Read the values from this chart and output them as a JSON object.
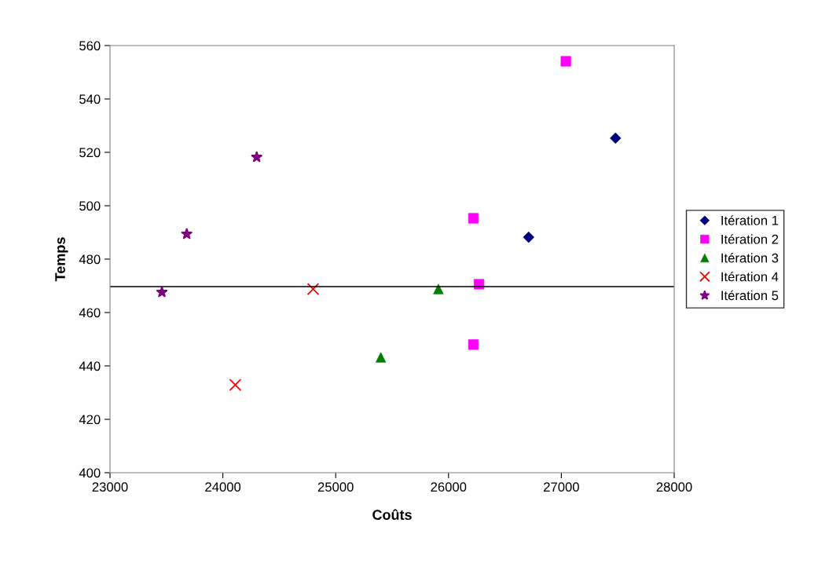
{
  "chart_data": {
    "type": "scatter",
    "xlabel": "Coûts",
    "ylabel": "Temps",
    "xlim": [
      23000,
      28000
    ],
    "xticks": [
      23000,
      24000,
      25000,
      26000,
      27000,
      28000
    ],
    "ylim": [
      400,
      560
    ],
    "yticks": [
      400,
      420,
      440,
      460,
      480,
      500,
      520,
      540,
      560
    ],
    "grid": false,
    "legend": "right",
    "ref_lines": [
      {
        "axis": "y",
        "value": 469.7,
        "color": "#000000"
      }
    ],
    "series": [
      {
        "name": "Itération 1",
        "color": "#000080",
        "marker": "diamond",
        "x": [
          27480,
          26710
        ],
        "values": [
          525.3,
          488.2
        ]
      },
      {
        "name": "Itération 2",
        "color": "#ff00ff",
        "marker": "square",
        "x": [
          27040,
          26220,
          26270,
          26220
        ],
        "values": [
          554.1,
          495.3,
          470.6,
          448
        ]
      },
      {
        "name": "Itération 3",
        "color": "#008000",
        "marker": "triangle",
        "x": [
          25910,
          25400
        ],
        "values": [
          468.8,
          443.2
        ]
      },
      {
        "name": "Itération 4",
        "color": "#ff0000",
        "marker": "cross",
        "x": [
          24800,
          24110
        ],
        "values": [
          468.8,
          432.9
        ]
      },
      {
        "name": "Itération 5",
        "color": "#800080",
        "marker": "star",
        "x": [
          23460,
          23680,
          24300
        ],
        "values": [
          467.6,
          489.4,
          518.2
        ]
      }
    ]
  }
}
